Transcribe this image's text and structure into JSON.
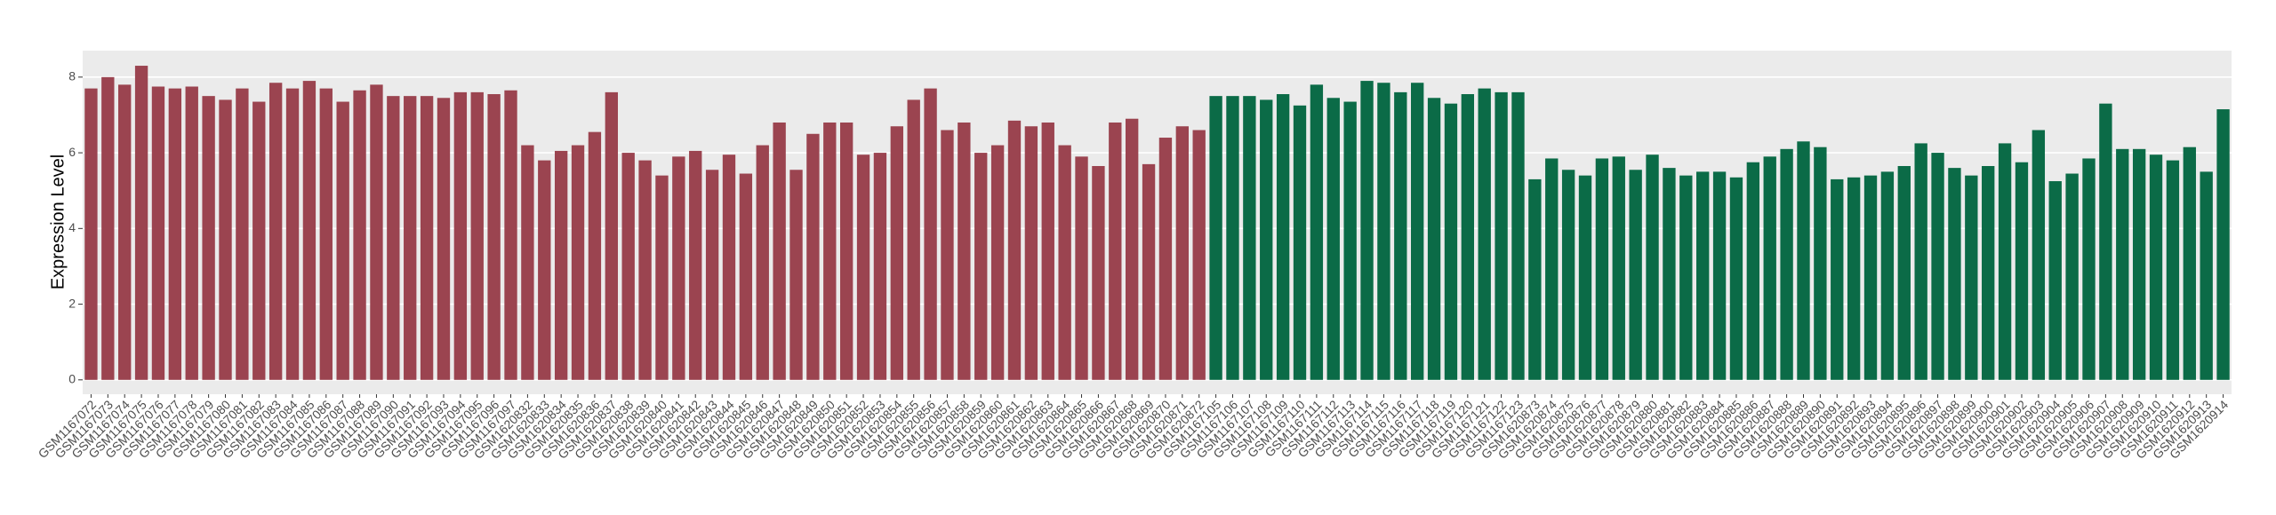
{
  "chart_data": {
    "type": "bar",
    "ylabel": "Expression Level",
    "categories": [
      "GSM1167072",
      "GSM1167073",
      "GSM1167074",
      "GSM1167075",
      "GSM1167076",
      "GSM1167077",
      "GSM1167078",
      "GSM1167079",
      "GSM1167080",
      "GSM1167081",
      "GSM1167082",
      "GSM1167083",
      "GSM1167084",
      "GSM1167085",
      "GSM1167086",
      "GSM1167087",
      "GSM1167088",
      "GSM1167089",
      "GSM1167090",
      "GSM1167091",
      "GSM1167092",
      "GSM1167093",
      "GSM1167094",
      "GSM1167095",
      "GSM1167096",
      "GSM1167097",
      "GSM1620832",
      "GSM1620833",
      "GSM1620834",
      "GSM1620835",
      "GSM1620836",
      "GSM1620837",
      "GSM1620838",
      "GSM1620839",
      "GSM1620840",
      "GSM1620841",
      "GSM1620842",
      "GSM1620843",
      "GSM1620844",
      "GSM1620845",
      "GSM1620846",
      "GSM1620847",
      "GSM1620848",
      "GSM1620849",
      "GSM1620850",
      "GSM1620851",
      "GSM1620852",
      "GSM1620853",
      "GSM1620854",
      "GSM1620855",
      "GSM1620856",
      "GSM1620857",
      "GSM1620858",
      "GSM1620859",
      "GSM1620860",
      "GSM1620861",
      "GSM1620862",
      "GSM1620863",
      "GSM1620864",
      "GSM1620865",
      "GSM1620866",
      "GSM1620867",
      "GSM1620868",
      "GSM1620869",
      "GSM1620870",
      "GSM1620871",
      "GSM1620872",
      "GSM1167105",
      "GSM1167106",
      "GSM1167107",
      "GSM1167108",
      "GSM1167109",
      "GSM1167110",
      "GSM1167111",
      "GSM1167112",
      "GSM1167113",
      "GSM1167114",
      "GSM1167115",
      "GSM1167116",
      "GSM1167117",
      "GSM1167118",
      "GSM1167119",
      "GSM1167120",
      "GSM1167121",
      "GSM1167122",
      "GSM1167123",
      "GSM1620873",
      "GSM1620874",
      "GSM1620875",
      "GSM1620876",
      "GSM1620877",
      "GSM1620878",
      "GSM1620879",
      "GSM1620880",
      "GSM1620881",
      "GSM1620882",
      "GSM1620883",
      "GSM1620884",
      "GSM1620885",
      "GSM1620886",
      "GSM1620887",
      "GSM1620888",
      "GSM1620889",
      "GSM1620890",
      "GSM1620891",
      "GSM1620892",
      "GSM1620893",
      "GSM1620894",
      "GSM1620895",
      "GSM1620896",
      "GSM1620897",
      "GSM1620898",
      "GSM1620899",
      "GSM1620900",
      "GSM1620901",
      "GSM1620902",
      "GSM1620903",
      "GSM1620904",
      "GSM1620905",
      "GSM1620906",
      "GSM1620907",
      "GSM1620908",
      "GSM1620909",
      "GSM1620910",
      "GSM1620911",
      "GSM1620912",
      "GSM1620913",
      "GSM1620914"
    ],
    "values": [
      7.7,
      8.0,
      7.8,
      8.3,
      7.75,
      7.7,
      7.75,
      7.5,
      7.4,
      7.7,
      7.35,
      7.85,
      7.7,
      7.9,
      7.7,
      7.35,
      7.65,
      7.8,
      7.5,
      7.5,
      7.5,
      7.45,
      7.6,
      7.6,
      7.55,
      7.65,
      6.2,
      5.8,
      6.05,
      6.2,
      6.55,
      7.6,
      6.0,
      5.8,
      5.4,
      5.9,
      6.05,
      5.55,
      5.95,
      5.45,
      6.2,
      6.8,
      5.55,
      6.5,
      6.8,
      6.8,
      5.95,
      6.0,
      6.7,
      7.4,
      7.7,
      6.6,
      6.8,
      6.0,
      6.2,
      6.85,
      6.7,
      6.8,
      6.2,
      5.9,
      5.65,
      6.8,
      6.9,
      5.7,
      6.4,
      6.7,
      6.6,
      7.5,
      7.5,
      7.5,
      7.4,
      7.55,
      7.25,
      7.8,
      7.45,
      7.35,
      7.9,
      7.85,
      7.6,
      7.85,
      7.45,
      7.3,
      7.55,
      7.7,
      7.6,
      7.6,
      5.3,
      5.85,
      5.55,
      5.4,
      5.85,
      5.9,
      5.55,
      5.95,
      5.6,
      5.4,
      5.5,
      5.5,
      5.35,
      5.75,
      5.9,
      6.1,
      6.3,
      6.15,
      5.3,
      5.35,
      5.4,
      5.5,
      5.65,
      6.25,
      6.0,
      5.6,
      5.4,
      5.65,
      6.25,
      5.75,
      6.6,
      5.25,
      5.45,
      5.85,
      7.3,
      6.1,
      6.1,
      5.95,
      5.8,
      6.15,
      5.5,
      7.15
    ],
    "colors": [
      "#9b4450",
      "#9b4450",
      "#9b4450",
      "#9b4450",
      "#9b4450",
      "#9b4450",
      "#9b4450",
      "#9b4450",
      "#9b4450",
      "#9b4450",
      "#9b4450",
      "#9b4450",
      "#9b4450",
      "#9b4450",
      "#9b4450",
      "#9b4450",
      "#9b4450",
      "#9b4450",
      "#9b4450",
      "#9b4450",
      "#9b4450",
      "#9b4450",
      "#9b4450",
      "#9b4450",
      "#9b4450",
      "#9b4450",
      "#9b4450",
      "#9b4450",
      "#9b4450",
      "#9b4450",
      "#9b4450",
      "#9b4450",
      "#9b4450",
      "#9b4450",
      "#9b4450",
      "#9b4450",
      "#9b4450",
      "#9b4450",
      "#9b4450",
      "#9b4450",
      "#9b4450",
      "#9b4450",
      "#9b4450",
      "#9b4450",
      "#9b4450",
      "#9b4450",
      "#9b4450",
      "#9b4450",
      "#9b4450",
      "#9b4450",
      "#9b4450",
      "#9b4450",
      "#9b4450",
      "#9b4450",
      "#9b4450",
      "#9b4450",
      "#9b4450",
      "#9b4450",
      "#9b4450",
      "#9b4450",
      "#9b4450",
      "#9b4450",
      "#9b4450",
      "#9b4450",
      "#9b4450",
      "#9b4450",
      "#9b4450",
      "#0b6b47",
      "#0b6b47",
      "#0b6b47",
      "#0b6b47",
      "#0b6b47",
      "#0b6b47",
      "#0b6b47",
      "#0b6b47",
      "#0b6b47",
      "#0b6b47",
      "#0b6b47",
      "#0b6b47",
      "#0b6b47",
      "#0b6b47",
      "#0b6b47",
      "#0b6b47",
      "#0b6b47",
      "#0b6b47",
      "#0b6b47",
      "#0b6b47",
      "#0b6b47",
      "#0b6b47",
      "#0b6b47",
      "#0b6b47",
      "#0b6b47",
      "#0b6b47",
      "#0b6b47",
      "#0b6b47",
      "#0b6b47",
      "#0b6b47",
      "#0b6b47",
      "#0b6b47",
      "#0b6b47",
      "#0b6b47",
      "#0b6b47",
      "#0b6b47",
      "#0b6b47",
      "#0b6b47",
      "#0b6b47",
      "#0b6b47",
      "#0b6b47",
      "#0b6b47",
      "#0b6b47",
      "#0b6b47",
      "#0b6b47",
      "#0b6b47",
      "#0b6b47",
      "#0b6b47",
      "#0b6b47",
      "#0b6b47",
      "#0b6b47",
      "#0b6b47",
      "#0b6b47",
      "#0b6b47",
      "#0b6b47",
      "#0b6b47",
      "#0b6b47",
      "#0b6b47",
      "#0b6b47",
      "#0b6b47",
      "#0b6b47"
    ],
    "ylim": [
      -0.38,
      8.7
    ],
    "yticks": [
      0,
      2,
      4,
      6,
      8
    ],
    "grid": true
  }
}
